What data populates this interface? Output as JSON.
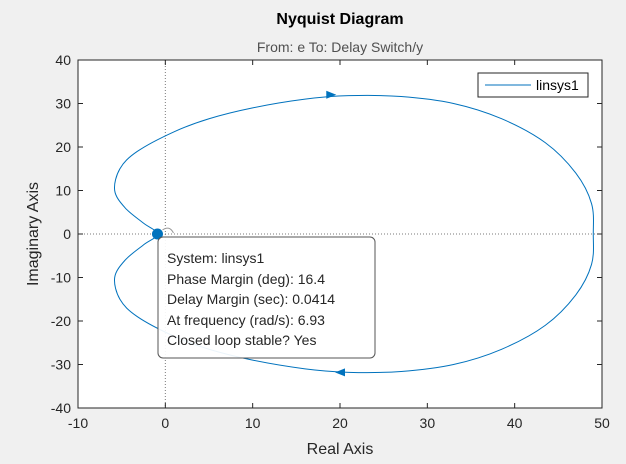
{
  "chart_data": {
    "type": "line",
    "title": "Nyquist Diagram",
    "subtitle": "From: e  To: Delay Switch/y",
    "xlabel": "Real Axis",
    "ylabel": "Imaginary Axis",
    "xlim": [
      -10,
      50
    ],
    "ylim": [
      -40,
      40
    ],
    "xticks": [
      -10,
      0,
      10,
      20,
      30,
      40,
      50
    ],
    "yticks": [
      -40,
      -30,
      -20,
      -10,
      0,
      10,
      20,
      30,
      40
    ],
    "xtick_labels": [
      "-10",
      "0",
      "10",
      "20",
      "30",
      "40",
      "50"
    ],
    "ytick_labels": [
      "-40",
      "-30",
      "-20",
      "-10",
      "0",
      "10",
      "20",
      "30",
      "40"
    ],
    "grid": false,
    "origin_crosshair": true,
    "legend_position": "top-right",
    "series": [
      {
        "name": "linsys1",
        "color": "#0072BD",
        "x": [
          -0.9,
          -2.5,
          -4.6,
          -5.8,
          -5.2,
          -3.2,
          1.0,
          5.0,
          10.0,
          16.0,
          21.0,
          27.0,
          33.0,
          38.5,
          43.5,
          47.0,
          48.8,
          49.0,
          48.8,
          47.0,
          43.5,
          38.5,
          33.0,
          27.0,
          21.0,
          16.0,
          10.0,
          5.0,
          1.0,
          -3.2,
          -5.2,
          -5.8,
          -4.6,
          -2.5,
          -0.9
        ],
        "y": [
          0.0,
          2.5,
          6.0,
          10.0,
          15.0,
          19.0,
          23.5,
          26.5,
          29.0,
          31.0,
          31.8,
          31.6,
          30.0,
          26.5,
          21.0,
          14.0,
          7.0,
          0.0,
          -7.0,
          -14.0,
          -21.0,
          -26.5,
          -30.0,
          -31.6,
          -31.8,
          -31.0,
          -29.0,
          -26.5,
          -23.5,
          -19.0,
          -15.0,
          -10.0,
          -6.0,
          -2.5,
          0.0
        ],
        "arrows": [
          {
            "x": 19.0,
            "y": 32.0,
            "dir": "right"
          },
          {
            "x": 20.0,
            "y": -31.8,
            "dir": "left"
          }
        ]
      }
    ],
    "marker": {
      "x": -0.9,
      "y": 0.0,
      "color": "#0072BD"
    },
    "datatip": {
      "lines": [
        "System: linsys1",
        "Phase Margin (deg): 16.4",
        "Delay Margin (sec): 0.0414",
        "At frequency (rad/s): 6.93",
        "Closed loop stable? Yes"
      ]
    }
  }
}
